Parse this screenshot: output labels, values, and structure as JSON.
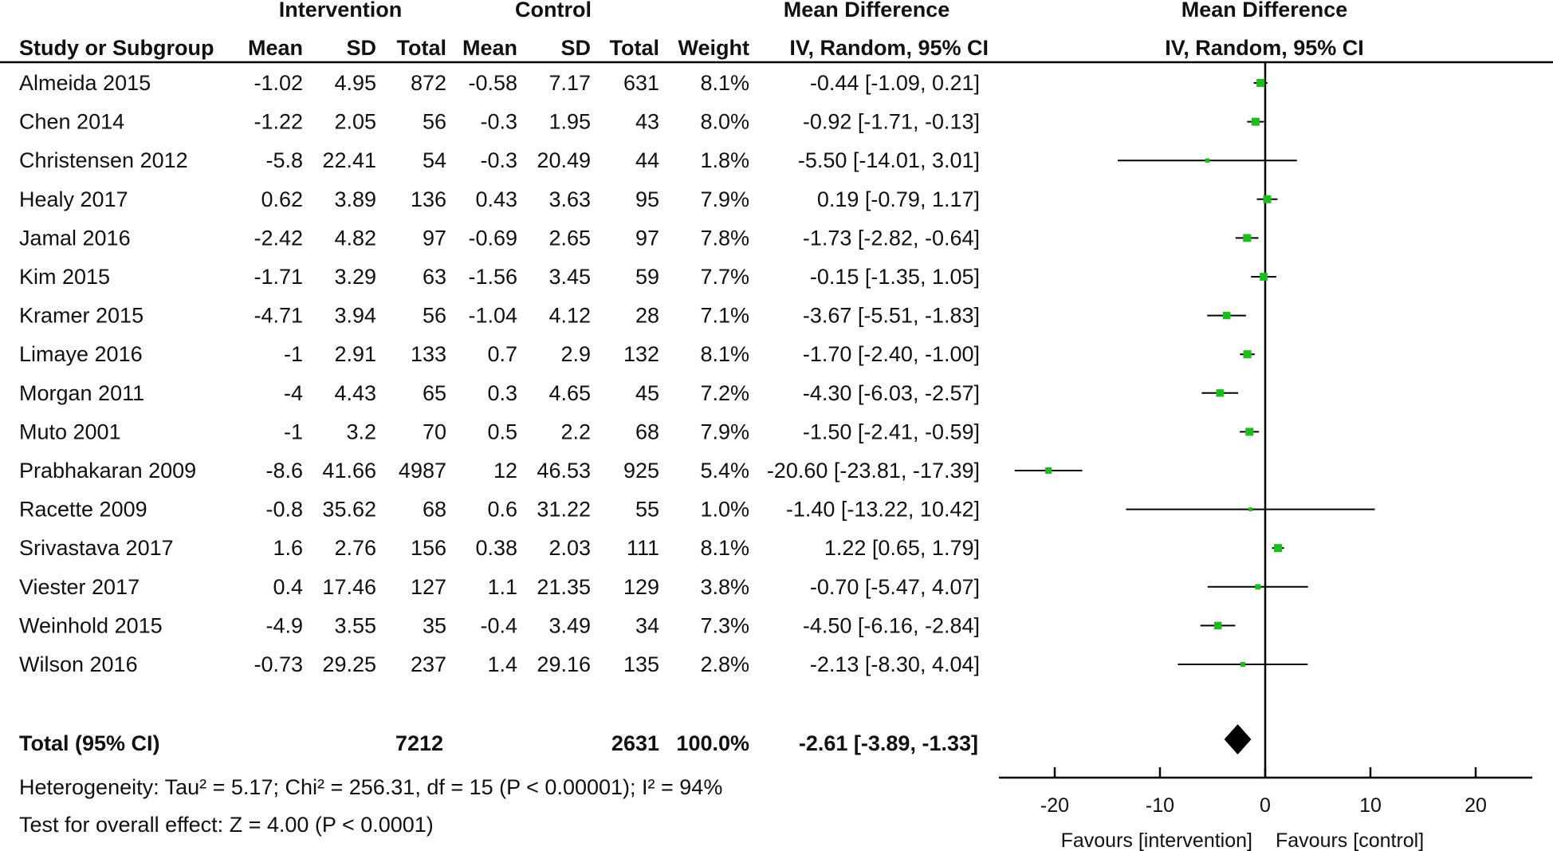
{
  "chart_data": {
    "type": "forest",
    "headers": {
      "group_intervention": "Intervention",
      "group_control": "Control",
      "group_md": "Mean Difference",
      "group_plot": "Mean Difference",
      "study": "Study or Subgroup",
      "int_mean": "Mean",
      "int_sd": "SD",
      "int_total": "Total",
      "ctl_mean": "Mean",
      "ctl_sd": "SD",
      "ctl_total": "Total",
      "weight": "Weight",
      "ci": "IV, Random, 95% CI",
      "plot_ci": "IV, Random, 95% CI"
    },
    "studies": [
      {
        "name": "Almeida 2015",
        "int_mean": "-1.02",
        "int_sd": "4.95",
        "int_total": "872",
        "ctl_mean": "-0.58",
        "ctl_sd": "7.17",
        "ctl_total": "631",
        "weight": "8.1%",
        "ci_text": "-0.44 [-1.09, 0.21]",
        "md": -0.44,
        "lo": -1.09,
        "hi": 0.21,
        "w": 8.1
      },
      {
        "name": "Chen 2014",
        "int_mean": "-1.22",
        "int_sd": "2.05",
        "int_total": "56",
        "ctl_mean": "-0.3",
        "ctl_sd": "1.95",
        "ctl_total": "43",
        "weight": "8.0%",
        "ci_text": "-0.92 [-1.71, -0.13]",
        "md": -0.92,
        "lo": -1.71,
        "hi": -0.13,
        "w": 8.0
      },
      {
        "name": "Christensen 2012",
        "int_mean": "-5.8",
        "int_sd": "22.41",
        "int_total": "54",
        "ctl_mean": "-0.3",
        "ctl_sd": "20.49",
        "ctl_total": "44",
        "weight": "1.8%",
        "ci_text": "-5.50 [-14.01, 3.01]",
        "md": -5.5,
        "lo": -14.01,
        "hi": 3.01,
        "w": 1.8
      },
      {
        "name": "Healy 2017",
        "int_mean": "0.62",
        "int_sd": "3.89",
        "int_total": "136",
        "ctl_mean": "0.43",
        "ctl_sd": "3.63",
        "ctl_total": "95",
        "weight": "7.9%",
        "ci_text": "0.19 [-0.79, 1.17]",
        "md": 0.19,
        "lo": -0.79,
        "hi": 1.17,
        "w": 7.9
      },
      {
        "name": "Jamal 2016",
        "int_mean": "-2.42",
        "int_sd": "4.82",
        "int_total": "97",
        "ctl_mean": "-0.69",
        "ctl_sd": "2.65",
        "ctl_total": "97",
        "weight": "7.8%",
        "ci_text": "-1.73 [-2.82, -0.64]",
        "md": -1.73,
        "lo": -2.82,
        "hi": -0.64,
        "w": 7.8
      },
      {
        "name": "Kim 2015",
        "int_mean": "-1.71",
        "int_sd": "3.29",
        "int_total": "63",
        "ctl_mean": "-1.56",
        "ctl_sd": "3.45",
        "ctl_total": "59",
        "weight": "7.7%",
        "ci_text": "-0.15 [-1.35, 1.05]",
        "md": -0.15,
        "lo": -1.35,
        "hi": 1.05,
        "w": 7.7
      },
      {
        "name": "Kramer 2015",
        "int_mean": "-4.71",
        "int_sd": "3.94",
        "int_total": "56",
        "ctl_mean": "-1.04",
        "ctl_sd": "4.12",
        "ctl_total": "28",
        "weight": "7.1%",
        "ci_text": "-3.67 [-5.51, -1.83]",
        "md": -3.67,
        "lo": -5.51,
        "hi": -1.83,
        "w": 7.1
      },
      {
        "name": "Limaye 2016",
        "int_mean": "-1",
        "int_sd": "2.91",
        "int_total": "133",
        "ctl_mean": "0.7",
        "ctl_sd": "2.9",
        "ctl_total": "132",
        "weight": "8.1%",
        "ci_text": "-1.70 [-2.40, -1.00]",
        "md": -1.7,
        "lo": -2.4,
        "hi": -1.0,
        "w": 8.1
      },
      {
        "name": "Morgan 2011",
        "int_mean": "-4",
        "int_sd": "4.43",
        "int_total": "65",
        "ctl_mean": "0.3",
        "ctl_sd": "4.65",
        "ctl_total": "45",
        "weight": "7.2%",
        "ci_text": "-4.30 [-6.03, -2.57]",
        "md": -4.3,
        "lo": -6.03,
        "hi": -2.57,
        "w": 7.2
      },
      {
        "name": "Muto 2001",
        "int_mean": "-1",
        "int_sd": "3.2",
        "int_total": "70",
        "ctl_mean": "0.5",
        "ctl_sd": "2.2",
        "ctl_total": "68",
        "weight": "7.9%",
        "ci_text": "-1.50 [-2.41, -0.59]",
        "md": -1.5,
        "lo": -2.41,
        "hi": -0.59,
        "w": 7.9
      },
      {
        "name": "Prabhakaran 2009",
        "int_mean": "-8.6",
        "int_sd": "41.66",
        "int_total": "4987",
        "ctl_mean": "12",
        "ctl_sd": "46.53",
        "ctl_total": "925",
        "weight": "5.4%",
        "ci_text": "-20.60 [-23.81, -17.39]",
        "md": -20.6,
        "lo": -23.81,
        "hi": -17.39,
        "w": 5.4
      },
      {
        "name": "Racette 2009",
        "int_mean": "-0.8",
        "int_sd": "35.62",
        "int_total": "68",
        "ctl_mean": "0.6",
        "ctl_sd": "31.22",
        "ctl_total": "55",
        "weight": "1.0%",
        "ci_text": "-1.40 [-13.22, 10.42]",
        "md": -1.4,
        "lo": -13.22,
        "hi": 10.42,
        "w": 1.0
      },
      {
        "name": "Srivastava 2017",
        "int_mean": "1.6",
        "int_sd": "2.76",
        "int_total": "156",
        "ctl_mean": "0.38",
        "ctl_sd": "2.03",
        "ctl_total": "111",
        "weight": "8.1%",
        "ci_text": "1.22 [0.65, 1.79]",
        "md": 1.22,
        "lo": 0.65,
        "hi": 1.79,
        "w": 8.1
      },
      {
        "name": "Viester 2017",
        "int_mean": "0.4",
        "int_sd": "17.46",
        "int_total": "127",
        "ctl_mean": "1.1",
        "ctl_sd": "21.35",
        "ctl_total": "129",
        "weight": "3.8%",
        "ci_text": "-0.70 [-5.47, 4.07]",
        "md": -0.7,
        "lo": -5.47,
        "hi": 4.07,
        "w": 3.8
      },
      {
        "name": "Weinhold 2015",
        "int_mean": "-4.9",
        "int_sd": "3.55",
        "int_total": "35",
        "ctl_mean": "-0.4",
        "ctl_sd": "3.49",
        "ctl_total": "34",
        "weight": "7.3%",
        "ci_text": "-4.50 [-6.16, -2.84]",
        "md": -4.5,
        "lo": -6.16,
        "hi": -2.84,
        "w": 7.3
      },
      {
        "name": "Wilson 2016",
        "int_mean": "-0.73",
        "int_sd": "29.25",
        "int_total": "237",
        "ctl_mean": "1.4",
        "ctl_sd": "29.16",
        "ctl_total": "135",
        "weight": "2.8%",
        "ci_text": "-2.13 [-8.30, 4.04]",
        "md": -2.13,
        "lo": -8.3,
        "hi": 4.04,
        "w": 2.8
      }
    ],
    "total": {
      "label": "Total (95% CI)",
      "int_total": "7212",
      "ctl_total": "2631",
      "weight": "100.0%",
      "ci_text": "-2.61 [-3.89, -1.33]",
      "md": -2.61,
      "lo": -3.89,
      "hi": -1.33
    },
    "heterogeneity": "Heterogeneity: Tau² = 5.17; Chi² = 256.31, df = 15 (P < 0.00001); I² = 94%",
    "overall_effect": "Test for overall effect: Z = 4.00 (P < 0.0001)",
    "x_axis": {
      "ticks": [
        -20,
        -10,
        0,
        10,
        20
      ],
      "tick_labels": [
        "-20",
        "-10",
        "0",
        "10",
        "20"
      ],
      "range": [
        -25,
        25
      ]
    },
    "favours_left": "Favours [intervention]",
    "favours_right": "Favours [control]",
    "colors": {
      "marker": "#1ebd1e",
      "line": "#000000",
      "diamond": "#000000"
    }
  }
}
